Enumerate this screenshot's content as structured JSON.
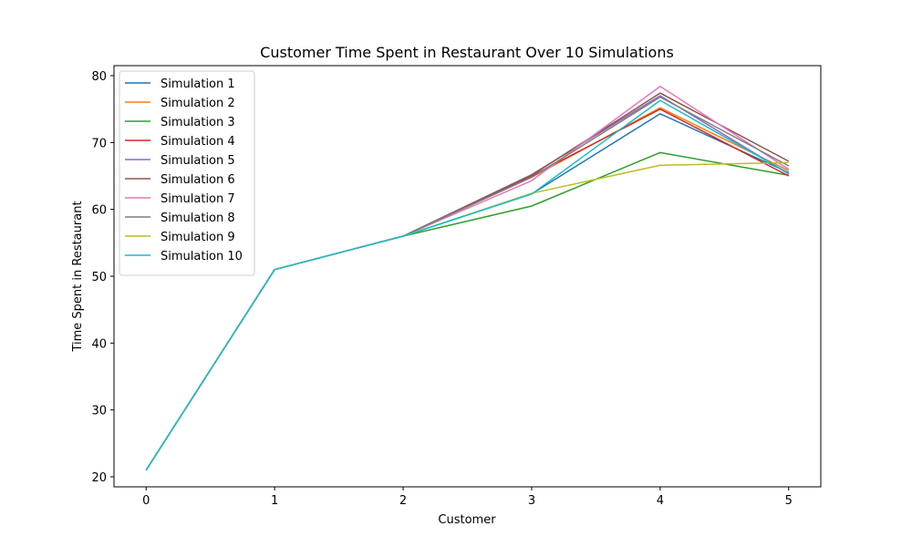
{
  "chart_data": {
    "type": "line",
    "title": "Customer Time Spent in Restaurant Over 10 Simulations",
    "xlabel": "Customer",
    "ylabel": "Time Spent in Restaurant",
    "x": [
      0,
      1,
      2,
      3,
      4,
      5
    ],
    "xlim": [
      -0.25,
      5.25
    ],
    "ylim": [
      18.5,
      81.5
    ],
    "xticks": [
      0,
      1,
      2,
      3,
      4,
      5
    ],
    "yticks": [
      20,
      30,
      40,
      50,
      60,
      70,
      80
    ],
    "grid": false,
    "legend_position": "top-left",
    "series": [
      {
        "name": "Simulation 1",
        "color": "#1f77b4",
        "values": [
          21,
          51,
          56,
          62.3,
          74.3,
          65.5
        ]
      },
      {
        "name": "Simulation 2",
        "color": "#ff7f0e",
        "values": [
          21,
          51,
          56,
          64.8,
          75.2,
          65.8
        ]
      },
      {
        "name": "Simulation 3",
        "color": "#2ca02c",
        "values": [
          21,
          51,
          56,
          60.5,
          68.5,
          65.1
        ]
      },
      {
        "name": "Simulation 4",
        "color": "#d62728",
        "values": [
          21,
          51,
          56,
          65.0,
          75.0,
          65.0
        ]
      },
      {
        "name": "Simulation 5",
        "color": "#9467bd",
        "values": [
          21,
          51,
          56,
          65.2,
          77.0,
          65.3
        ]
      },
      {
        "name": "Simulation 6",
        "color": "#8c564b",
        "values": [
          21,
          51,
          56,
          65.1,
          77.4,
          67.2
        ]
      },
      {
        "name": "Simulation 7",
        "color": "#e377c2",
        "values": [
          21,
          51,
          56,
          64.3,
          78.4,
          66.0
        ]
      },
      {
        "name": "Simulation 8",
        "color": "#7f7f7f",
        "values": [
          21,
          51,
          56,
          64.8,
          76.8,
          66.5
        ]
      },
      {
        "name": "Simulation 9",
        "color": "#bcbd22",
        "values": [
          21,
          51,
          56,
          62.4,
          66.6,
          67.0
        ]
      },
      {
        "name": "Simulation 10",
        "color": "#17becf",
        "values": [
          21,
          51,
          56,
          62.3,
          76.3,
          65.4
        ]
      }
    ]
  }
}
